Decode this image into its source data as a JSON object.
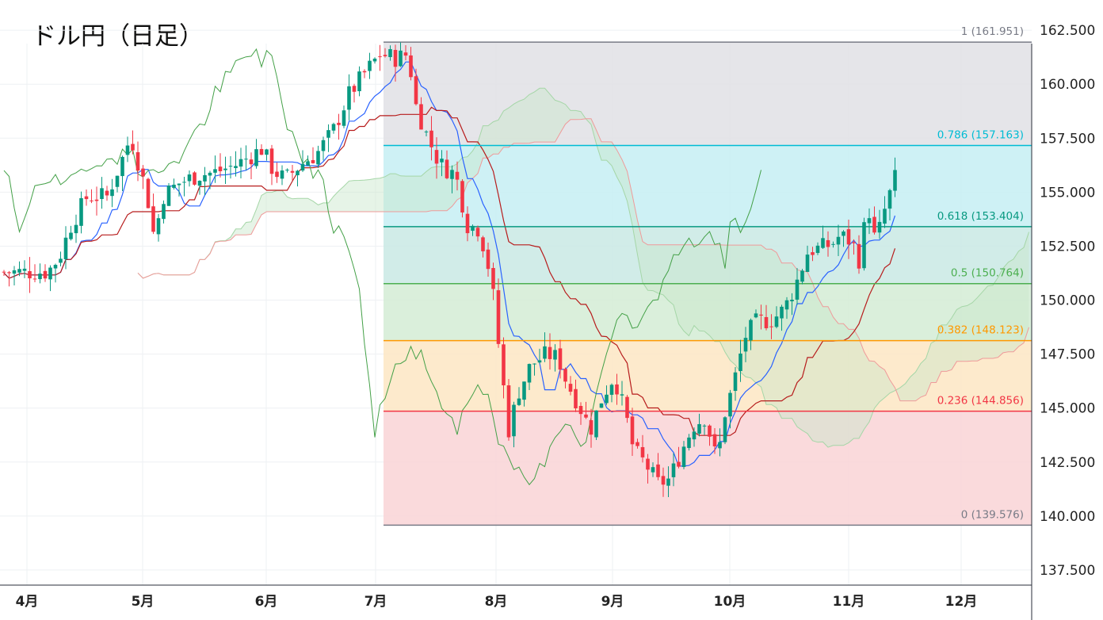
{
  "title": "ドル円（日足）",
  "chart_data": {
    "type": "candlestick",
    "title": "ドル円（日足）",
    "ylim": [
      136.8,
      163.9
    ],
    "y_ticks": [
      "162.500",
      "160.000",
      "157.500",
      "155.000",
      "152.500",
      "150.000",
      "147.500",
      "145.000",
      "142.500",
      "140.000",
      "137.500"
    ],
    "x_ticks": [
      "4月",
      "5月",
      "6月",
      "7月",
      "8月",
      "9月",
      "10月",
      "11月",
      "12月"
    ],
    "grid": true,
    "fibonacci": {
      "high": 161.951,
      "low": 139.576,
      "levels": [
        {
          "label": "1 (161.951)",
          "value": 161.951,
          "color": "#787b86",
          "fill": "#e0e1e5"
        },
        {
          "label": "0.786 (157.163)",
          "value": 157.163,
          "color": "#00bcd4",
          "fill": "#c6eef3"
        },
        {
          "label": "0.618 (153.404)",
          "value": 153.404,
          "color": "#089981",
          "fill": "#c9e9e4"
        },
        {
          "label": "0.5 (150.764)",
          "value": 150.764,
          "color": "#4caf50",
          "fill": "#d4ecd5"
        },
        {
          "label": "0.382 (148.123)",
          "value": 148.123,
          "color": "#ff9800",
          "fill": "#fde6c3"
        },
        {
          "label": "0.236 (144.856)",
          "value": 144.856,
          "color": "#f23645",
          "fill": "#f9d3d6"
        },
        {
          "label": "0 (139.576)",
          "value": 139.576,
          "color": "#787b86",
          "fill": "#f9d3d6"
        }
      ]
    },
    "colors": {
      "up": "#089981",
      "down": "#f23645",
      "tenkan": "#2962ff",
      "kijun": "#b71c1c",
      "chikou": "#43a047",
      "cloud_bull": "#c8e6c9",
      "cloud_bear": "#f8bbd0"
    }
  }
}
